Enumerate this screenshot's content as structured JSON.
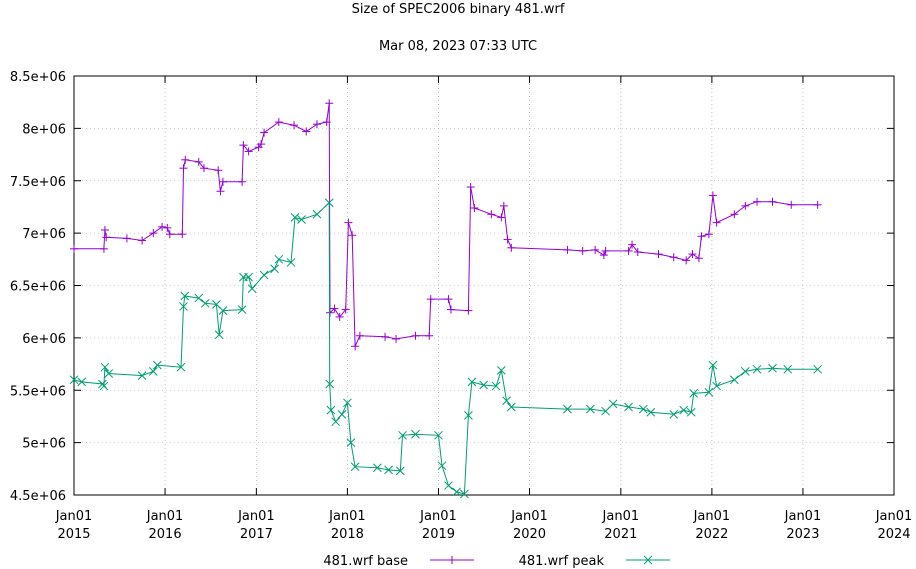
{
  "chart_data": {
    "type": "line",
    "title": "Size of SPEC2006 binary 481.wrf",
    "subtitle": "Mar 08, 2023 07:33 UTC",
    "xlabel": "",
    "ylabel": "",
    "xlim": [
      "2015-01-01",
      "2024-01-01"
    ],
    "ylim": [
      4500000,
      8500000
    ],
    "grid": true,
    "legend_position": "bottom",
    "y_ticks": [
      {
        "value": 4500000,
        "label": "4.5e+06"
      },
      {
        "value": 5000000,
        "label": "5e+06"
      },
      {
        "value": 5500000,
        "label": "5.5e+06"
      },
      {
        "value": 6000000,
        "label": "6e+06"
      },
      {
        "value": 6500000,
        "label": "6.5e+06"
      },
      {
        "value": 7000000,
        "label": "7e+06"
      },
      {
        "value": 7500000,
        "label": "7.5e+06"
      },
      {
        "value": 8000000,
        "label": "8e+06"
      },
      {
        "value": 8500000,
        "label": "8.5e+06"
      }
    ],
    "x_ticks": [
      {
        "value": "2015-01-01",
        "label": [
          "Jan01",
          "2015"
        ]
      },
      {
        "value": "2016-01-01",
        "label": [
          "Jan01",
          "2016"
        ]
      },
      {
        "value": "2017-01-01",
        "label": [
          "Jan01",
          "2017"
        ]
      },
      {
        "value": "2018-01-01",
        "label": [
          "Jan01",
          "2018"
        ]
      },
      {
        "value": "2019-01-01",
        "label": [
          "Jan01",
          "2019"
        ]
      },
      {
        "value": "2020-01-01",
        "label": [
          "Jan01",
          "2020"
        ]
      },
      {
        "value": "2021-01-01",
        "label": [
          "Jan01",
          "2021"
        ]
      },
      {
        "value": "2022-01-01",
        "label": [
          "Jan01",
          "2022"
        ]
      },
      {
        "value": "2023-01-01",
        "label": [
          "Jan01",
          "2023"
        ]
      },
      {
        "value": "2024-01-01",
        "label": [
          "Jan01",
          "2024"
        ]
      }
    ],
    "series": [
      {
        "name": "481.wrf base",
        "color": "#9400d3",
        "marker": "plus",
        "points": [
          [
            "2015-01-01",
            6850000
          ],
          [
            "2015-05-01",
            6850000
          ],
          [
            "2015-05-05",
            7030000
          ],
          [
            "2015-05-10",
            6960000
          ],
          [
            "2015-08-01",
            6950000
          ],
          [
            "2015-10-01",
            6930000
          ],
          [
            "2015-11-15",
            7000000
          ],
          [
            "2015-12-20",
            7060000
          ],
          [
            "2016-01-10",
            7050000
          ],
          [
            "2016-01-20",
            6990000
          ],
          [
            "2016-03-10",
            6990000
          ],
          [
            "2016-03-15",
            7620000
          ],
          [
            "2016-03-22",
            7700000
          ],
          [
            "2016-05-15",
            7680000
          ],
          [
            "2016-06-05",
            7620000
          ],
          [
            "2016-08-01",
            7600000
          ],
          [
            "2016-08-10",
            7400000
          ],
          [
            "2016-08-20",
            7490000
          ],
          [
            "2016-11-05",
            7490000
          ],
          [
            "2016-11-10",
            7840000
          ],
          [
            "2016-12-01",
            7780000
          ],
          [
            "2017-01-10",
            7820000
          ],
          [
            "2017-01-20",
            7850000
          ],
          [
            "2017-02-01",
            7960000
          ],
          [
            "2017-04-01",
            8060000
          ],
          [
            "2017-06-01",
            8030000
          ],
          [
            "2017-07-20",
            7970000
          ],
          [
            "2017-09-01",
            8040000
          ],
          [
            "2017-10-10",
            8060000
          ],
          [
            "2017-10-20",
            8240000
          ],
          [
            "2017-10-23",
            6240000
          ],
          [
            "2017-11-10",
            6280000
          ],
          [
            "2017-12-01",
            6200000
          ],
          [
            "2017-12-25",
            6270000
          ],
          [
            "2018-01-05",
            7100000
          ],
          [
            "2018-01-20",
            6980000
          ],
          [
            "2018-02-01",
            5920000
          ],
          [
            "2018-02-20",
            6020000
          ],
          [
            "2018-06-01",
            6010000
          ],
          [
            "2018-07-15",
            5990000
          ],
          [
            "2018-10-01",
            6020000
          ],
          [
            "2018-11-25",
            6020000
          ],
          [
            "2018-12-01",
            6370000
          ],
          [
            "2019-02-10",
            6370000
          ],
          [
            "2019-02-20",
            6270000
          ],
          [
            "2019-05-01",
            6260000
          ],
          [
            "2019-05-10",
            7440000
          ],
          [
            "2019-05-25",
            7240000
          ],
          [
            "2019-08-01",
            7180000
          ],
          [
            "2019-09-10",
            7150000
          ],
          [
            "2019-09-20",
            7260000
          ],
          [
            "2019-10-05",
            6940000
          ],
          [
            "2019-10-20",
            6860000
          ],
          [
            "2020-06-01",
            6840000
          ],
          [
            "2020-08-01",
            6830000
          ],
          [
            "2020-09-20",
            6840000
          ],
          [
            "2020-10-25",
            6790000
          ],
          [
            "2020-11-01",
            6830000
          ],
          [
            "2021-02-01",
            6830000
          ],
          [
            "2021-02-15",
            6890000
          ],
          [
            "2021-03-10",
            6820000
          ],
          [
            "2021-06-01",
            6800000
          ],
          [
            "2021-08-01",
            6770000
          ],
          [
            "2021-09-20",
            6740000
          ],
          [
            "2021-10-15",
            6800000
          ],
          [
            "2021-11-10",
            6760000
          ],
          [
            "2021-11-20",
            6970000
          ],
          [
            "2021-12-20",
            6990000
          ],
          [
            "2022-01-05",
            7360000
          ],
          [
            "2022-01-20",
            7100000
          ],
          [
            "2022-04-01",
            7180000
          ],
          [
            "2022-05-15",
            7260000
          ],
          [
            "2022-07-01",
            7300000
          ],
          [
            "2022-09-01",
            7300000
          ],
          [
            "2022-11-15",
            7270000
          ],
          [
            "2023-03-01",
            7270000
          ]
        ]
      },
      {
        "name": "481.wrf peak",
        "color": "#009e73",
        "marker": "cross",
        "points": [
          [
            "2015-01-01",
            5600000
          ],
          [
            "2015-02-01",
            5580000
          ],
          [
            "2015-04-25",
            5560000
          ],
          [
            "2015-05-01",
            5540000
          ],
          [
            "2015-05-05",
            5720000
          ],
          [
            "2015-05-20",
            5660000
          ],
          [
            "2015-10-01",
            5640000
          ],
          [
            "2015-11-15",
            5680000
          ],
          [
            "2015-12-01",
            5740000
          ],
          [
            "2016-03-05",
            5720000
          ],
          [
            "2016-03-15",
            6300000
          ],
          [
            "2016-03-20",
            6400000
          ],
          [
            "2016-05-15",
            6380000
          ],
          [
            "2016-06-10",
            6330000
          ],
          [
            "2016-07-25",
            6320000
          ],
          [
            "2016-08-05",
            6030000
          ],
          [
            "2016-08-20",
            6260000
          ],
          [
            "2016-11-05",
            6270000
          ],
          [
            "2016-11-10",
            6580000
          ],
          [
            "2016-12-01",
            6580000
          ],
          [
            "2016-12-15",
            6470000
          ],
          [
            "2017-02-01",
            6600000
          ],
          [
            "2017-03-15",
            6660000
          ],
          [
            "2017-04-01",
            6750000
          ],
          [
            "2017-05-20",
            6720000
          ],
          [
            "2017-06-05",
            7150000
          ],
          [
            "2017-07-01",
            7130000
          ],
          [
            "2017-09-01",
            7180000
          ],
          [
            "2017-10-20",
            7290000
          ],
          [
            "2017-10-22",
            5560000
          ],
          [
            "2017-10-27",
            5310000
          ],
          [
            "2017-11-15",
            5200000
          ],
          [
            "2017-12-10",
            5270000
          ],
          [
            "2018-01-01",
            5380000
          ],
          [
            "2018-01-15",
            5000000
          ],
          [
            "2018-02-01",
            4770000
          ],
          [
            "2018-05-01",
            4760000
          ],
          [
            "2018-06-15",
            4740000
          ],
          [
            "2018-08-01",
            4730000
          ],
          [
            "2018-08-10",
            5070000
          ],
          [
            "2018-10-01",
            5080000
          ],
          [
            "2019-01-01",
            5070000
          ],
          [
            "2019-01-15",
            4780000
          ],
          [
            "2019-02-10",
            4590000
          ],
          [
            "2019-03-15",
            4530000
          ],
          [
            "2019-04-15",
            4510000
          ],
          [
            "2019-05-01",
            5260000
          ],
          [
            "2019-05-15",
            5580000
          ],
          [
            "2019-07-01",
            5550000
          ],
          [
            "2019-08-20",
            5540000
          ],
          [
            "2019-09-10",
            5690000
          ],
          [
            "2019-10-01",
            5400000
          ],
          [
            "2019-10-20",
            5340000
          ],
          [
            "2020-06-01",
            5320000
          ],
          [
            "2020-09-01",
            5320000
          ],
          [
            "2020-11-01",
            5300000
          ],
          [
            "2020-12-01",
            5370000
          ],
          [
            "2021-02-01",
            5340000
          ],
          [
            "2021-04-01",
            5320000
          ],
          [
            "2021-05-01",
            5290000
          ],
          [
            "2021-08-01",
            5270000
          ],
          [
            "2021-09-10",
            5310000
          ],
          [
            "2021-10-10",
            5290000
          ],
          [
            "2021-10-20",
            5470000
          ],
          [
            "2021-12-20",
            5480000
          ],
          [
            "2022-01-05",
            5740000
          ],
          [
            "2022-01-20",
            5540000
          ],
          [
            "2022-04-01",
            5600000
          ],
          [
            "2022-05-15",
            5680000
          ],
          [
            "2022-07-01",
            5700000
          ],
          [
            "2022-09-01",
            5710000
          ],
          [
            "2022-11-01",
            5700000
          ],
          [
            "2023-03-01",
            5700000
          ]
        ]
      }
    ]
  }
}
